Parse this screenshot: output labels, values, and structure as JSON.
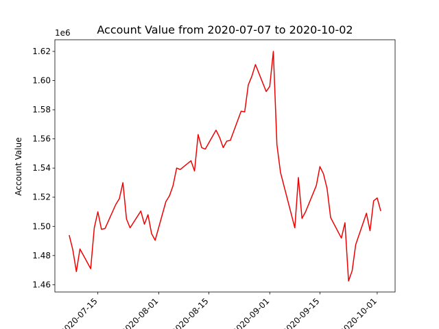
{
  "chart_data": {
    "type": "line",
    "title": "Account Value from 2020-07-07 to 2020-10-02",
    "ylabel": "Account Value",
    "xlabel": "",
    "offset_text": "1e6",
    "y_scale_factor": 1000000,
    "xlim": [
      "2020-07-03",
      "2020-10-06"
    ],
    "ylim": [
      1455000,
      1628000
    ],
    "grid": false,
    "legend": "none",
    "line_color": "#ee0000",
    "x_ticks": [
      "2020-07-15",
      "2020-08-01",
      "2020-08-15",
      "2020-09-01",
      "2020-09-15",
      "2020-10-01"
    ],
    "y_ticks": [
      1460000,
      1480000,
      1500000,
      1520000,
      1540000,
      1560000,
      1580000,
      1600000,
      1620000
    ],
    "y_tick_labels": [
      "1.46",
      "1.48",
      "1.50",
      "1.52",
      "1.54",
      "1.56",
      "1.58",
      "1.60",
      "1.62"
    ],
    "series": [
      {
        "name": "",
        "x": [
          "2020-07-07",
          "2020-07-08",
          "2020-07-09",
          "2020-07-10",
          "2020-07-13",
          "2020-07-14",
          "2020-07-15",
          "2020-07-16",
          "2020-07-17",
          "2020-07-20",
          "2020-07-21",
          "2020-07-22",
          "2020-07-23",
          "2020-07-24",
          "2020-07-27",
          "2020-07-28",
          "2020-07-29",
          "2020-07-30",
          "2020-07-31",
          "2020-08-03",
          "2020-08-04",
          "2020-08-05",
          "2020-08-06",
          "2020-08-07",
          "2020-08-10",
          "2020-08-11",
          "2020-08-12",
          "2020-08-13",
          "2020-08-14",
          "2020-08-17",
          "2020-08-18",
          "2020-08-19",
          "2020-08-20",
          "2020-08-21",
          "2020-08-24",
          "2020-08-25",
          "2020-08-26",
          "2020-08-27",
          "2020-08-28",
          "2020-08-31",
          "2020-09-01",
          "2020-09-02",
          "2020-09-03",
          "2020-09-04",
          "2020-09-08",
          "2020-09-09",
          "2020-09-10",
          "2020-09-11",
          "2020-09-14",
          "2020-09-15",
          "2020-09-16",
          "2020-09-17",
          "2020-09-18",
          "2020-09-21",
          "2020-09-22",
          "2020-09-23",
          "2020-09-24",
          "2020-09-25",
          "2020-09-28",
          "2020-09-29",
          "2020-09-30",
          "2020-10-01",
          "2020-10-02"
        ],
        "y": [
          1494000,
          1484000,
          1469000,
          1484500,
          1471000,
          1499000,
          1510000,
          1498000,
          1498500,
          1515000,
          1519000,
          1530000,
          1505000,
          1499000,
          1510500,
          1501500,
          1508000,
          1495000,
          1490500,
          1517000,
          1521000,
          1528000,
          1540000,
          1539000,
          1545000,
          1538000,
          1563000,
          1554000,
          1553000,
          1566000,
          1561000,
          1554000,
          1558500,
          1559000,
          1579000,
          1578500,
          1597000,
          1603000,
          1611000,
          1592500,
          1596000,
          1620000,
          1556000,
          1537000,
          1499000,
          1533500,
          1505500,
          1510000,
          1528000,
          1541000,
          1536000,
          1526000,
          1506000,
          1492000,
          1502500,
          1462500,
          1469500,
          1487500,
          1509000,
          1497000,
          1517500,
          1519500,
          1510500
        ]
      }
    ]
  }
}
